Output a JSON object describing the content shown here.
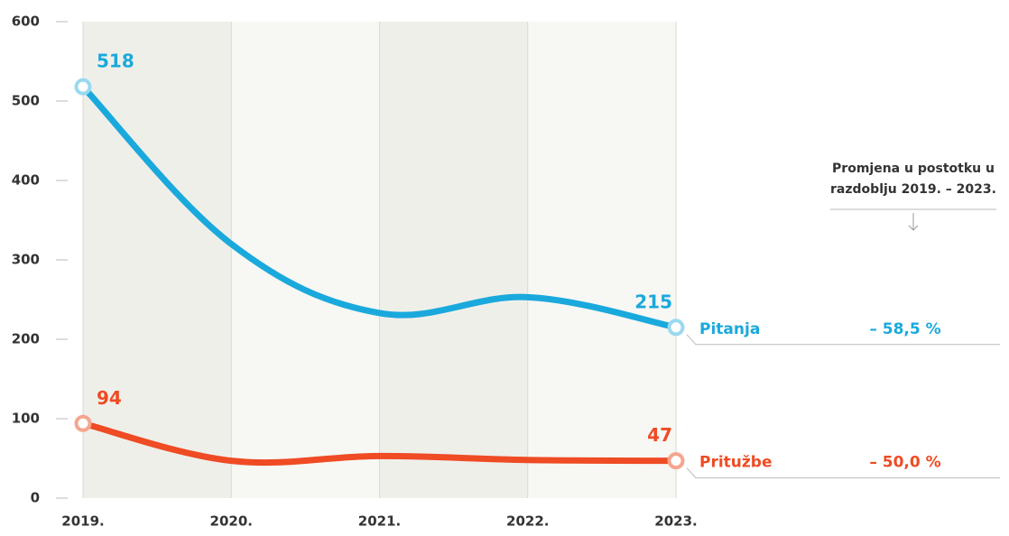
{
  "chart_data": {
    "type": "line",
    "categories": [
      "2019.",
      "2020.",
      "2021.",
      "2022.",
      "2023."
    ],
    "series": [
      {
        "name": "Pitanja",
        "color": "#1aa9dc",
        "values": [
          518,
          320,
          233,
          253,
          215
        ],
        "change": "– 58,5 %"
      },
      {
        "name": "Pritužbe",
        "color": "#ef4b24",
        "values": [
          94,
          47,
          53,
          48,
          47
        ],
        "change": "– 50,0 %"
      }
    ],
    "ylim": [
      0,
      600
    ],
    "yticks": [
      0,
      100,
      200,
      300,
      400,
      500,
      600
    ],
    "annotation": [
      "Promjena u postotku u",
      "razdoblju 2019. – 2023."
    ]
  }
}
